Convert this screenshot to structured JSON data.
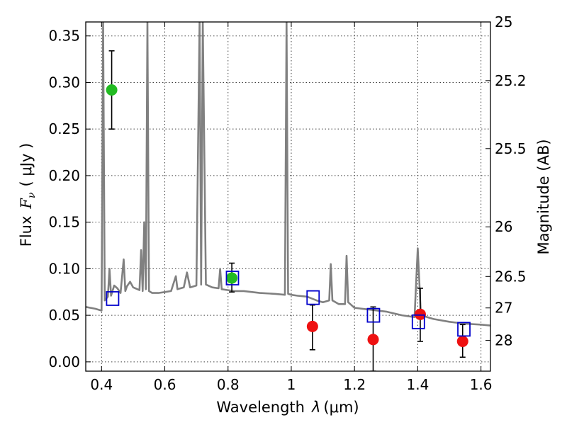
{
  "chart_data": {
    "type": "scatter",
    "xlabel_prefix": "Wavelength",
    "xlabel_symbol": "λ",
    "xlabel_unit": "(μm)",
    "ylabel_prefix": "Flux",
    "ylabel_symbol_main": "F",
    "ylabel_symbol_sub": "ν",
    "ylabel_unit": "( μJy )",
    "y2label": "Magnitude (AB)",
    "xlim": [
      0.35,
      1.63
    ],
    "ylim": [
      -0.01,
      0.365
    ],
    "grid": true,
    "x_ticks": [
      0.4,
      0.6,
      0.8,
      1.0,
      1.2,
      1.4,
      1.6
    ],
    "x_tick_labels": [
      "0.4",
      "0.6",
      "0.8",
      "1",
      "1.2",
      "1.4",
      "1.6"
    ],
    "y_ticks": [
      0.0,
      0.05,
      0.1,
      0.15,
      0.2,
      0.25,
      0.3,
      0.35
    ],
    "y_tick_labels": [
      "0.00",
      "0.05",
      "0.10",
      "0.15",
      "0.20",
      "0.25",
      "0.30",
      "0.35"
    ],
    "y2_ticks": [
      {
        "flux": 0.365,
        "label": "25"
      },
      {
        "flux": 0.302,
        "label": "25.2"
      },
      {
        "flux": 0.229,
        "label": "25.5"
      },
      {
        "flux": 0.145,
        "label": "26"
      },
      {
        "flux": 0.0917,
        "label": "26.5"
      },
      {
        "flux": 0.0579,
        "label": "27"
      },
      {
        "flux": 0.023,
        "label": "28"
      }
    ],
    "colors": {
      "model_line": "#808080",
      "green_points": "#22bb22",
      "red_points": "#ee1111",
      "open_squares": "#0000cc",
      "error_bars": "#000000"
    },
    "series": [
      {
        "kind": "line",
        "points": [
          [
            0.35,
            0.059
          ],
          [
            0.38,
            0.057
          ],
          [
            0.4,
            0.055
          ],
          [
            0.405,
            0.365
          ],
          [
            0.41,
            0.066
          ],
          [
            0.42,
            0.07
          ],
          [
            0.425,
            0.1
          ],
          [
            0.43,
            0.071
          ],
          [
            0.44,
            0.082
          ],
          [
            0.45,
            0.079
          ],
          [
            0.46,
            0.074
          ],
          [
            0.47,
            0.11
          ],
          [
            0.475,
            0.076
          ],
          [
            0.48,
            0.081
          ],
          [
            0.49,
            0.086
          ],
          [
            0.5,
            0.08
          ],
          [
            0.52,
            0.077
          ],
          [
            0.525,
            0.12
          ],
          [
            0.53,
            0.076
          ],
          [
            0.535,
            0.15
          ],
          [
            0.54,
            0.078
          ],
          [
            0.545,
            0.365
          ],
          [
            0.55,
            0.076
          ],
          [
            0.56,
            0.074
          ],
          [
            0.58,
            0.074
          ],
          [
            0.6,
            0.075
          ],
          [
            0.62,
            0.076
          ],
          [
            0.635,
            0.092
          ],
          [
            0.64,
            0.078
          ],
          [
            0.66,
            0.08
          ],
          [
            0.67,
            0.096
          ],
          [
            0.68,
            0.08
          ],
          [
            0.7,
            0.082
          ],
          [
            0.71,
            0.365
          ],
          [
            0.715,
            0.083
          ],
          [
            0.72,
            0.365
          ],
          [
            0.73,
            0.083
          ],
          [
            0.75,
            0.08
          ],
          [
            0.77,
            0.079
          ],
          [
            0.775,
            0.1
          ],
          [
            0.78,
            0.078
          ],
          [
            0.8,
            0.077
          ],
          [
            0.82,
            0.076
          ],
          [
            0.85,
            0.076
          ],
          [
            0.9,
            0.074
          ],
          [
            0.95,
            0.073
          ],
          [
            0.98,
            0.072
          ],
          [
            0.985,
            0.365
          ],
          [
            0.99,
            0.073
          ],
          [
            1.0,
            0.072
          ],
          [
            1.02,
            0.071
          ],
          [
            1.05,
            0.07
          ],
          [
            1.08,
            0.066
          ],
          [
            1.1,
            0.064
          ],
          [
            1.12,
            0.066
          ],
          [
            1.125,
            0.105
          ],
          [
            1.13,
            0.066
          ],
          [
            1.15,
            0.062
          ],
          [
            1.17,
            0.062
          ],
          [
            1.175,
            0.114
          ],
          [
            1.18,
            0.064
          ],
          [
            1.2,
            0.058
          ],
          [
            1.25,
            0.056
          ],
          [
            1.3,
            0.054
          ],
          [
            1.35,
            0.05
          ],
          [
            1.39,
            0.048
          ],
          [
            1.4,
            0.122
          ],
          [
            1.41,
            0.05
          ],
          [
            1.45,
            0.046
          ],
          [
            1.5,
            0.043
          ],
          [
            1.55,
            0.041
          ],
          [
            1.6,
            0.04
          ],
          [
            1.63,
            0.039
          ]
        ]
      },
      {
        "kind": "points",
        "marker": "circle",
        "color_key": "green_points",
        "points": [
          {
            "x": 0.432,
            "y": 0.292,
            "err_low": 0.25,
            "err_high": 0.334
          },
          {
            "x": 0.812,
            "y": 0.09,
            "err_low": 0.075,
            "err_high": 0.106
          }
        ]
      },
      {
        "kind": "points",
        "marker": "circle",
        "color_key": "red_points",
        "points": [
          {
            "x": 1.067,
            "y": 0.038,
            "err_low": 0.013,
            "err_high": 0.061
          },
          {
            "x": 1.259,
            "y": 0.024,
            "err_low": -0.01,
            "err_high": 0.059
          },
          {
            "x": 1.408,
            "y": 0.051,
            "err_low": 0.022,
            "err_high": 0.079
          },
          {
            "x": 1.542,
            "y": 0.022,
            "err_low": 0.005,
            "err_high": 0.04
          }
        ]
      },
      {
        "kind": "points",
        "marker": "square",
        "color_key": "open_squares",
        "points": [
          {
            "x": 0.435,
            "y": 0.068
          },
          {
            "x": 0.814,
            "y": 0.09
          },
          {
            "x": 1.069,
            "y": 0.069
          },
          {
            "x": 1.26,
            "y": 0.05
          },
          {
            "x": 1.402,
            "y": 0.043
          },
          {
            "x": 1.546,
            "y": 0.035
          }
        ]
      }
    ]
  }
}
